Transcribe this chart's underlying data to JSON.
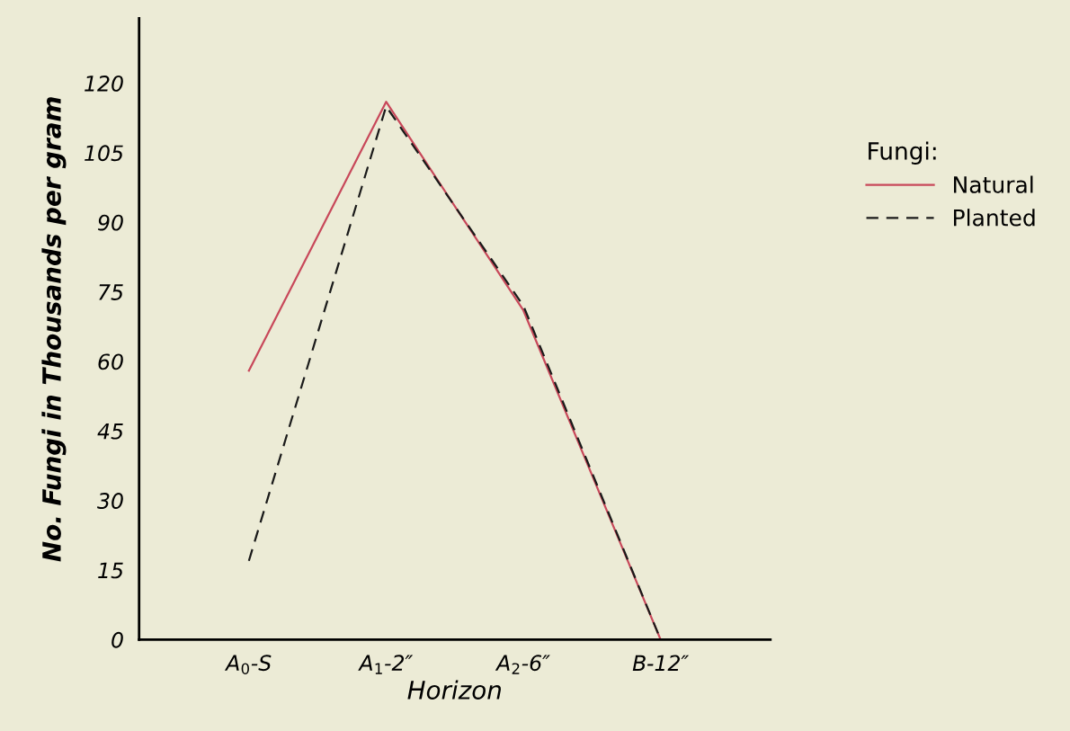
{
  "chart_data": {
    "type": "line",
    "xlabel": "Horizon",
    "ylabel": "No. Fungi in Thousands per gram",
    "legend_title": "Fungi:",
    "categories": [
      "A$_{0}$-S",
      "A$_{1}$-2″",
      "A$_{2}$-6″",
      "B-12″"
    ],
    "ylim": [
      0,
      134
    ],
    "yticks": [
      0,
      15,
      30,
      45,
      60,
      75,
      90,
      105,
      120
    ],
    "series": [
      {
        "name": "Natural",
        "color": "#c8485a",
        "line_style": "solid",
        "values": [
          58,
          116,
          71,
          0
        ]
      },
      {
        "name": "Planted",
        "color": "#1a1a1a",
        "line_style": "dashed",
        "values": [
          17,
          115,
          72,
          0
        ]
      }
    ],
    "grid": false,
    "legend": "right",
    "marker": "none"
  }
}
